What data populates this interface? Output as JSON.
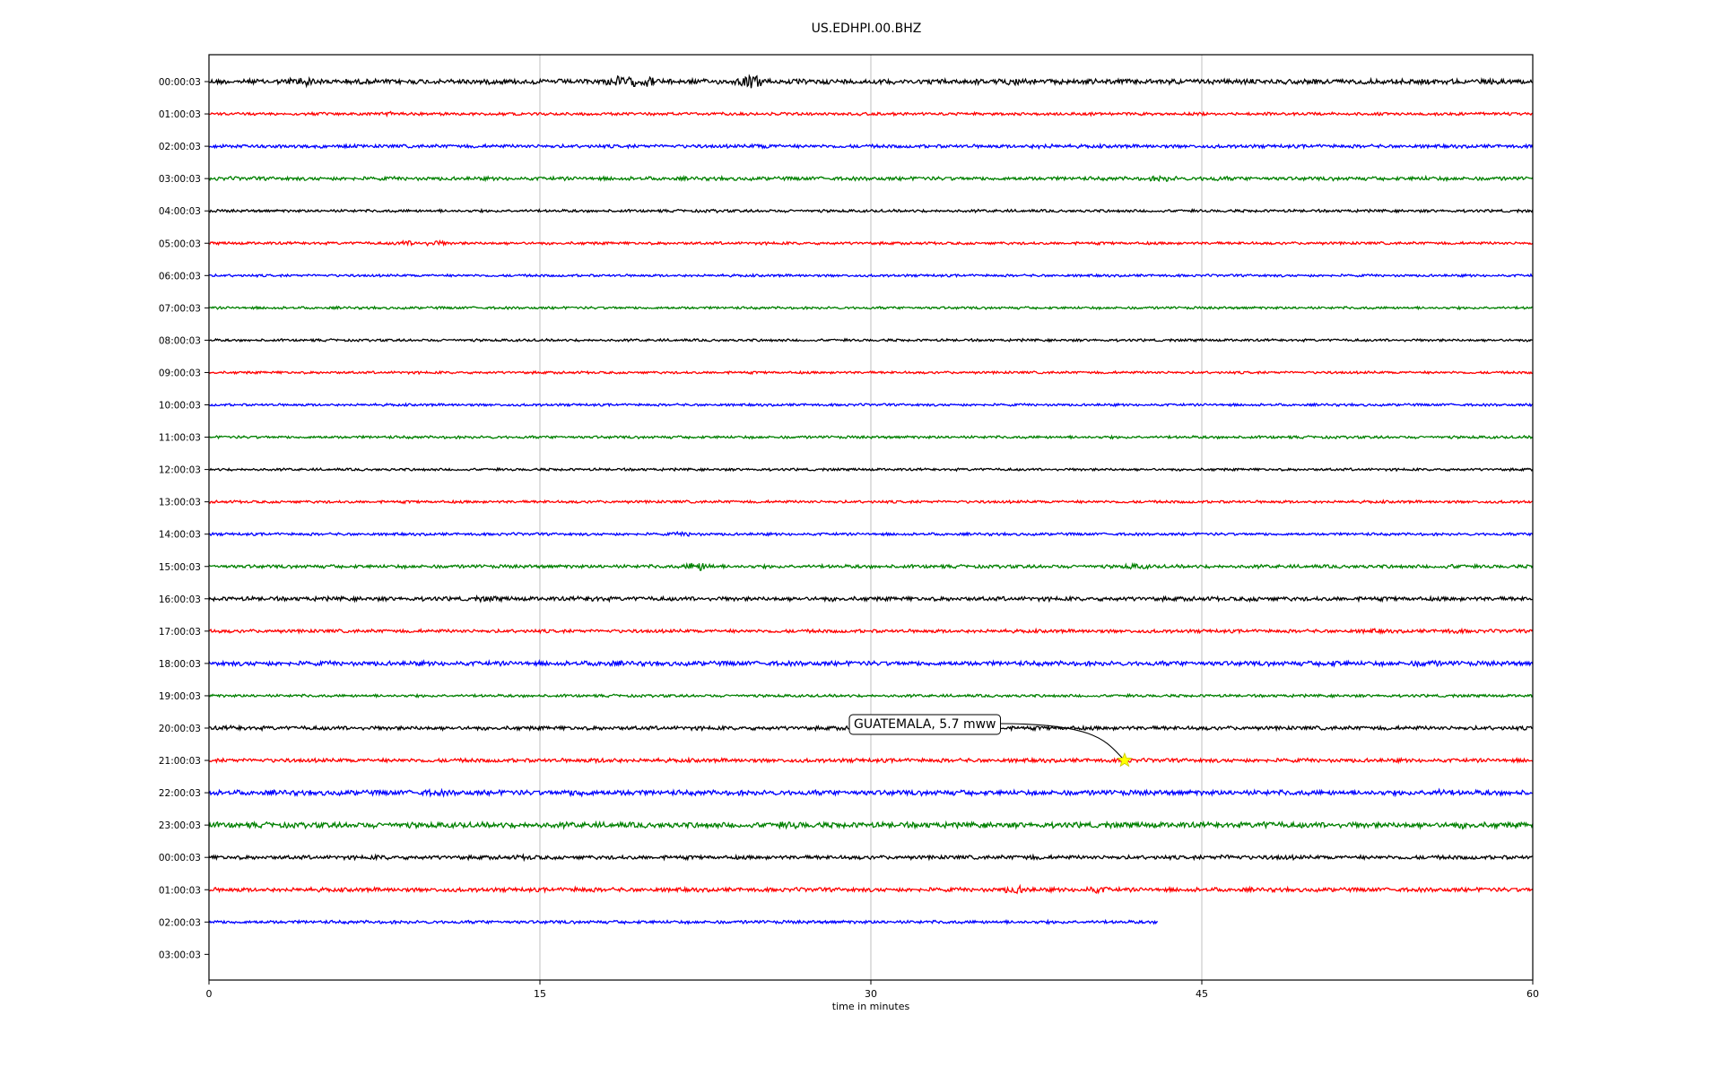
{
  "chart_data": {
    "type": "line",
    "title": "US.EDHPI.00.BHZ",
    "xlabel": "time in minutes",
    "ylabel": "",
    "xlim": [
      0,
      60
    ],
    "xticks": [
      0,
      15,
      30,
      45,
      60
    ],
    "x_grid": true,
    "row_labels": [
      "00:00:03",
      "01:00:03",
      "02:00:03",
      "03:00:03",
      "04:00:03",
      "05:00:03",
      "06:00:03",
      "07:00:03",
      "08:00:03",
      "09:00:03",
      "10:00:03",
      "11:00:03",
      "12:00:03",
      "13:00:03",
      "14:00:03",
      "15:00:03",
      "16:00:03",
      "17:00:03",
      "18:00:03",
      "19:00:03",
      "20:00:03",
      "21:00:03",
      "22:00:03",
      "23:00:03",
      "00:00:03",
      "01:00:03",
      "02:00:03",
      "03:00:03"
    ],
    "colors": [
      "#000000",
      "#ff0000",
      "#0000ff",
      "#008000"
    ],
    "trace_end_minutes": [
      60,
      60,
      60,
      60,
      60,
      60,
      60,
      60,
      60,
      60,
      60,
      60,
      60,
      60,
      60,
      60,
      60,
      60,
      60,
      60,
      60,
      60,
      60,
      60,
      60,
      60,
      43,
      0
    ],
    "noise_levels": [
      0.22,
      0.13,
      0.15,
      0.16,
      0.12,
      0.12,
      0.11,
      0.11,
      0.11,
      0.11,
      0.11,
      0.12,
      0.11,
      0.12,
      0.12,
      0.15,
      0.18,
      0.15,
      0.2,
      0.12,
      0.17,
      0.17,
      0.22,
      0.24,
      0.17,
      0.18,
      0.14,
      0
    ],
    "annotation": {
      "label": "GUATEMALA, 5.7 mww",
      "row": 21,
      "minute": 41.5,
      "marker": "star",
      "marker_color": "#ffff00"
    }
  }
}
